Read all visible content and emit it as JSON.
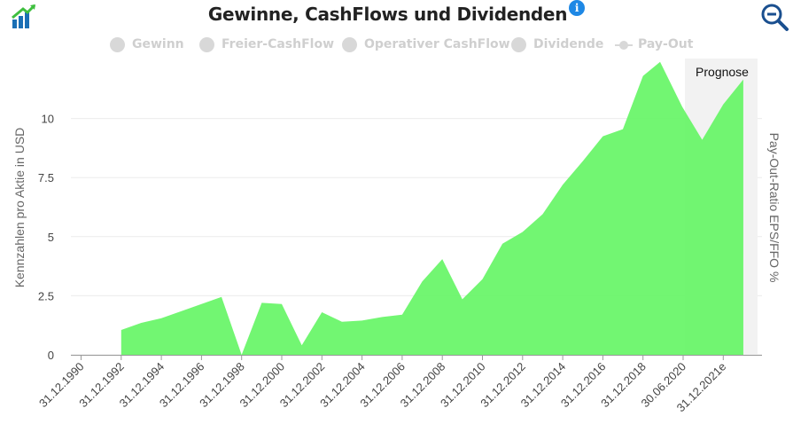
{
  "header": {
    "title": "Gewinne, CashFlows und Dividenden",
    "info_icon": "info-icon",
    "logo_icon": "growth-chart-logo-icon",
    "zoom_icon": "zoom-out-icon"
  },
  "colors": {
    "gewinn": "#2dff2d",
    "gewinn_fill": "#66f566",
    "inactive": "#d8d8d8",
    "prognose_band": "#f2f2f2",
    "info": "#1e88e5",
    "zoom": "#1a4f8f"
  },
  "legend": [
    {
      "label": "Gewinn",
      "active": true,
      "marker": "dot"
    },
    {
      "label": "Freier-CashFlow",
      "active": false,
      "marker": "dot"
    },
    {
      "label": "Operativer CashFlow",
      "active": false,
      "marker": "dot"
    },
    {
      "label": "Dividende",
      "active": false,
      "marker": "dot"
    },
    {
      "label": "Pay-Out",
      "active": false,
      "marker": "line"
    }
  ],
  "chart_data": {
    "type": "area",
    "title": "Gewinne, CashFlows und Dividenden",
    "ylabel": "Kennzahlen pro Aktie in USD",
    "ylabel_right": "Pay-Out-Ratio EPS/FFO %",
    "ylim": [
      0,
      12.5
    ],
    "yticks": [
      0,
      2.5,
      5,
      7.5,
      10
    ],
    "ytick_labels": [
      "0",
      "2.5",
      "5",
      "7.5",
      "10"
    ],
    "xtick_labels": [
      "31.12.1990",
      "31.12.1992",
      "31.12.1994",
      "31.12.1996",
      "31.12.1998",
      "31.12.2000",
      "31.12.2002",
      "31.12.2004",
      "31.12.2006",
      "31.12.2008",
      "31.12.2010",
      "31.12.2012",
      "31.12.2014",
      "31.12.2016",
      "31.12.2018",
      "30.06.2020",
      "31.12.2021e"
    ],
    "forecast_label": "Prognose",
    "series": [
      {
        "name": "Gewinn",
        "points": [
          [
            1992,
            1.05
          ],
          [
            1993,
            1.35
          ],
          [
            1994,
            1.55
          ],
          [
            1995,
            1.85
          ],
          [
            1996,
            2.15
          ],
          [
            1997,
            2.45
          ],
          [
            1998,
            0.0
          ],
          [
            1999,
            2.2
          ],
          [
            2000,
            2.15
          ],
          [
            2001,
            0.4
          ],
          [
            2002,
            1.8
          ],
          [
            2003,
            1.4
          ],
          [
            2004,
            1.45
          ],
          [
            2005,
            1.6
          ],
          [
            2006,
            1.7
          ],
          [
            2007,
            3.1
          ],
          [
            2008,
            4.05
          ],
          [
            2009,
            2.35
          ],
          [
            2010,
            3.2
          ],
          [
            2011,
            4.7
          ],
          [
            2012,
            5.2
          ],
          [
            2013,
            5.95
          ],
          [
            2014,
            7.2
          ],
          [
            2015,
            8.2
          ],
          [
            2016,
            9.25
          ],
          [
            2017,
            9.55
          ],
          [
            2018,
            11.8
          ],
          [
            2018.85,
            12.4
          ],
          [
            2019.95,
            10.5
          ],
          [
            2020.95,
            9.1
          ],
          [
            2022,
            10.6
          ],
          [
            2023,
            11.65
          ]
        ]
      }
    ],
    "forecast_start": 2020.0,
    "forecast_end": 2023.0
  }
}
